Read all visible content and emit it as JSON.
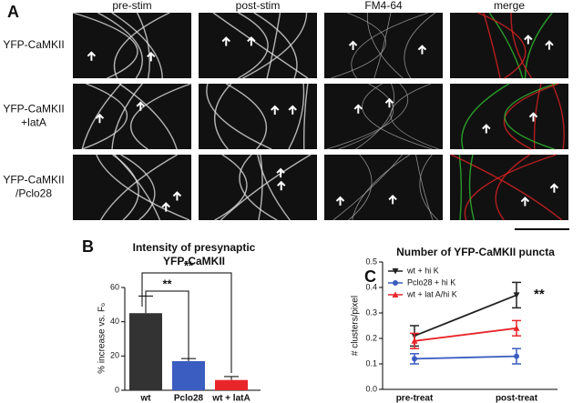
{
  "panel_a": {
    "label": "A",
    "columns": [
      "pre-stim",
      "post-stim",
      "FM4-64",
      "merge"
    ],
    "rows": [
      [
        "YFP-CaMKII"
      ],
      [
        "YFP-CaMKII",
        "+latA"
      ],
      [
        "YFP-CaMKII",
        "/Pclo28"
      ]
    ]
  },
  "chart_data": [
    {
      "type": "bar",
      "label": "B",
      "title": [
        "Intensity of presynaptic",
        "YFP-CaMKII"
      ],
      "ylabel": "% increase vs. Fₒ",
      "categories": [
        "wt",
        "Pclo28",
        "wt + latA"
      ],
      "values": [
        45,
        17,
        6
      ],
      "errors": [
        10,
        1.5,
        2
      ],
      "colors": [
        "#333333",
        "#3b5cc0",
        "#e8262a"
      ],
      "ylim": [
        0,
        60
      ],
      "yticks": [
        0,
        20,
        40,
        60
      ],
      "annotations": [
        "**",
        "**"
      ]
    },
    {
      "type": "line",
      "label": "C",
      "title": "Number of YFP-CaMKII puncta",
      "ylabel": "# clusters/pixel",
      "categories": [
        "pre-treat",
        "post-treat"
      ],
      "series": [
        {
          "name": "wt + hi K",
          "color": "#222222",
          "marker": "triangle-down",
          "values": [
            0.21,
            0.37
          ],
          "errors": [
            0.04,
            0.05
          ]
        },
        {
          "name": "Pclo28 + hi K",
          "color": "#3b5cc0",
          "marker": "circle",
          "values": [
            0.12,
            0.13
          ],
          "errors": [
            0.02,
            0.03
          ]
        },
        {
          "name": "wt + lat A/hi K",
          "color": "#e8262a",
          "marker": "triangle-up",
          "values": [
            0.19,
            0.24
          ],
          "errors": [
            0.03,
            0.03
          ]
        }
      ],
      "ylim": [
        0,
        0.5
      ],
      "yticks": [
        {
          "value": 0,
          "label": "0.0"
        },
        0.1,
        0.2,
        0.3,
        0.4,
        0.5
      ],
      "annotations": [
        "**"
      ]
    }
  ]
}
